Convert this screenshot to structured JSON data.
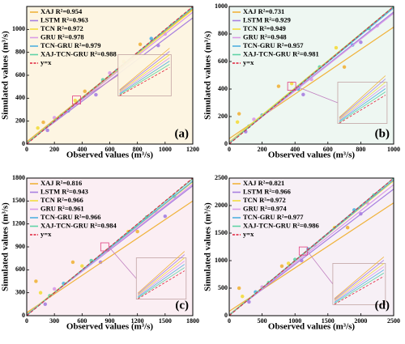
{
  "chart_data": [
    {
      "type": "scatter",
      "panel_label": "(a)",
      "x_label": "Observed values (m³/s)",
      "y_label": "Simulated values (m³/s)",
      "background": "#fdf5e2",
      "xlim": [
        0,
        1200
      ],
      "ylim": [
        0,
        1200
      ],
      "xticks": [
        0,
        200,
        400,
        600,
        800,
        1000,
        1200
      ],
      "yticks": [
        0,
        200,
        400,
        600,
        800,
        1000
      ],
      "line_x": [
        0,
        1200
      ],
      "series": [
        {
          "name": "XAJ R²=0.954",
          "color": "#f0b33c",
          "x": [
            120,
            420,
            820
          ],
          "y": [
            190,
            460,
            870
          ],
          "line_y": [
            20,
            1180
          ]
        },
        {
          "name": "LSTM R²=0.963",
          "color": "#a77fe0",
          "x": [
            150,
            500,
            950
          ],
          "y": [
            120,
            430,
            860
          ],
          "line_y": [
            10,
            1100
          ]
        },
        {
          "name": "TCN R²=0.972",
          "color": "#f3dc3e",
          "x": [
            80,
            350,
            700
          ],
          "y": [
            140,
            380,
            720
          ],
          "line_y": [
            10,
            1170
          ]
        },
        {
          "name": "GRU R²=0.978",
          "color": "#d99be6",
          "x": [
            200,
            600,
            1000
          ],
          "y": [
            230,
            620,
            960
          ],
          "line_y": [
            8,
            1150
          ]
        },
        {
          "name": "TCN-GRU R²=0.979",
          "color": "#4fb0e0",
          "x": [
            300,
            650,
            900
          ],
          "y": [
            290,
            640,
            920
          ],
          "line_y": [
            5,
            1190
          ]
        },
        {
          "name": "XAJ-TCN-GRU R²=0.988",
          "color": "#5fd3a6",
          "x": [
            250,
            550,
            1050
          ],
          "y": [
            250,
            560,
            1040
          ],
          "line_y": [
            5,
            1195
          ]
        },
        {
          "name": "y=x",
          "color": "#e0203a",
          "dashed": true,
          "line_y": [
            0,
            1200
          ]
        }
      ]
    },
    {
      "type": "scatter",
      "panel_label": "(b)",
      "x_label": "Observed values (m³/s)",
      "y_label": "Simulated values (m³/s)",
      "background": "#eef7f2",
      "xlim": [
        0,
        1000
      ],
      "ylim": [
        0,
        1000
      ],
      "xticks": [
        0,
        200,
        400,
        600,
        800,
        1000
      ],
      "yticks": [
        0,
        200,
        400,
        600,
        800,
        1000
      ],
      "line_x": [
        0,
        1000
      ],
      "series": [
        {
          "name": "XAJ R²=0.731",
          "color": "#f0b33c",
          "x": [
            60,
            300,
            700
          ],
          "y": [
            220,
            420,
            560
          ],
          "line_y": [
            40,
            850
          ]
        },
        {
          "name": "LSTM R²=0.929",
          "color": "#a77fe0",
          "x": [
            100,
            450,
            800
          ],
          "y": [
            90,
            360,
            740
          ],
          "line_y": [
            10,
            960
          ]
        },
        {
          "name": "TCN R²=0.949",
          "color": "#f3dc3e",
          "x": [
            50,
            380,
            650
          ],
          "y": [
            160,
            440,
            700
          ],
          "line_y": [
            15,
            1000
          ]
        },
        {
          "name": "GRU R²=0.948",
          "color": "#d99be6",
          "x": [
            150,
            500,
            900
          ],
          "y": [
            180,
            470,
            860
          ],
          "line_y": [
            10,
            950
          ]
        },
        {
          "name": "TCN-GRU R²=0.957",
          "color": "#4fb0e0",
          "x": [
            200,
            420,
            750
          ],
          "y": [
            210,
            400,
            720
          ],
          "line_y": [
            5,
            990
          ]
        },
        {
          "name": "XAJ-TCN-GRU R²=0.981",
          "color": "#5fd3a6",
          "x": [
            120,
            550,
            850
          ],
          "y": [
            130,
            560,
            840
          ],
          "line_y": [
            5,
            1000
          ]
        },
        {
          "name": "y=x",
          "color": "#e0203a",
          "dashed": true,
          "line_y": [
            0,
            1000
          ]
        }
      ]
    },
    {
      "type": "scatter",
      "panel_label": "(c)",
      "x_label": "Observed values (m³/s)",
      "y_label": "Simulated values (m³/s)",
      "background": "#fbeef3",
      "xlim": [
        0,
        1800
      ],
      "ylim": [
        0,
        1800
      ],
      "xticks": [
        0,
        300,
        600,
        900,
        1200,
        1500,
        1800
      ],
      "yticks": [
        0,
        300,
        600,
        900,
        1200,
        1500,
        1800
      ],
      "line_x": [
        0,
        1800
      ],
      "series": [
        {
          "name": "XAJ R²=0.816",
          "color": "#f0b33c",
          "x": [
            100,
            500,
            1200
          ],
          "y": [
            450,
            700,
            1100
          ],
          "line_y": [
            40,
            1500
          ]
        },
        {
          "name": "LSTM R²=0.943",
          "color": "#a77fe0",
          "x": [
            200,
            800,
            1500
          ],
          "y": [
            150,
            700,
            1300
          ],
          "line_y": [
            20,
            1700
          ]
        },
        {
          "name": "TCN R²=0.966",
          "color": "#f3dc3e",
          "x": [
            150,
            600,
            1100
          ],
          "y": [
            300,
            650,
            1100
          ],
          "line_y": [
            20,
            1750
          ]
        },
        {
          "name": "GRU R²=0.961",
          "color": "#d99be6",
          "x": [
            300,
            900,
            1400
          ],
          "y": [
            350,
            880,
            1360
          ],
          "line_y": [
            15,
            1720
          ]
        },
        {
          "name": "TCN-GRU R²=0.966",
          "color": "#4fb0e0",
          "x": [
            400,
            1000,
            1600
          ],
          "y": [
            420,
            980,
            1560
          ],
          "line_y": [
            10,
            1760
          ]
        },
        {
          "name": "XAJ-TCN-GRU R²=0.984",
          "color": "#5fd3a6",
          "x": [
            250,
            700,
            1300
          ],
          "y": [
            260,
            720,
            1290
          ],
          "line_y": [
            5,
            1790
          ]
        },
        {
          "name": "y=x",
          "color": "#e0203a",
          "dashed": true,
          "line_y": [
            0,
            1800
          ]
        }
      ]
    },
    {
      "type": "scatter",
      "panel_label": "(d)",
      "x_label": "Observed values (m³/s)",
      "y_label": "Simulated values (m³/s)",
      "background": "#f7f0f6",
      "xlim": [
        0,
        2500
      ],
      "ylim": [
        0,
        2500
      ],
      "xticks": [
        0,
        500,
        1000,
        1500,
        2000,
        2500
      ],
      "yticks": [
        0,
        500,
        1000,
        1500,
        2000,
        2500
      ],
      "line_x": [
        0,
        2500
      ],
      "series": [
        {
          "name": "XAJ R²=0.821",
          "color": "#f0b33c",
          "x": [
            150,
            800,
            1800
          ],
          "y": [
            500,
            900,
            1600
          ],
          "line_y": [
            80,
            2050
          ]
        },
        {
          "name": "LSTM R²=0.966",
          "color": "#a77fe0",
          "x": [
            300,
            1100,
            2000
          ],
          "y": [
            250,
            1000,
            1850
          ],
          "line_y": [
            20,
            2300
          ]
        },
        {
          "name": "TCN R²=0.972",
          "color": "#f3dc3e",
          "x": [
            200,
            900,
            1600
          ],
          "y": [
            350,
            950,
            1600
          ],
          "line_y": [
            20,
            2450
          ]
        },
        {
          "name": "GRU R²=0.974",
          "color": "#d99be6",
          "x": [
            500,
            1300,
            2100
          ],
          "y": [
            520,
            1280,
            2050
          ],
          "line_y": [
            15,
            2380
          ]
        },
        {
          "name": "TCN-GRU R²=0.977",
          "color": "#4fb0e0",
          "x": [
            400,
            1200,
            1900
          ],
          "y": [
            430,
            1210,
            1920
          ],
          "line_y": [
            10,
            2470
          ]
        },
        {
          "name": "XAJ-TCN-GRU R²=0.986",
          "color": "#5fd3a6",
          "x": [
            600,
            1000,
            2200
          ],
          "y": [
            600,
            1020,
            2190
          ],
          "line_y": [
            5,
            2500
          ]
        },
        {
          "name": "y=x",
          "color": "#e0203a",
          "dashed": true,
          "line_y": [
            0,
            2500
          ]
        }
      ]
    }
  ]
}
